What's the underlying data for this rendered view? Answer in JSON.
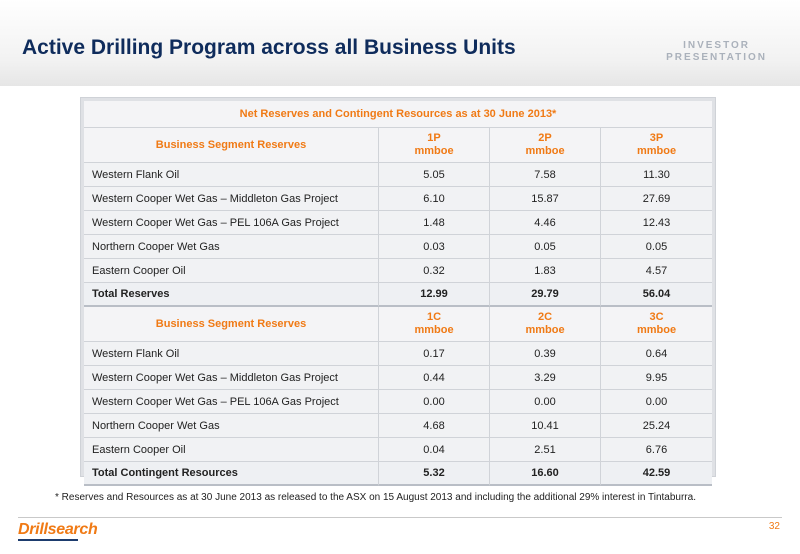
{
  "header": {
    "title": "Active Drilling Program across all Business Units",
    "investor_line1": "INVESTOR",
    "investor_line2": "PRESENTATION"
  },
  "table": {
    "caption": "Net Reserves and Contingent Resources as at 30 June 2013*",
    "reserves": {
      "header": [
        "Business Segment Reserves",
        "1P\nmmboe",
        "2P\nmmboe",
        "3P\nmmboe"
      ],
      "rows": [
        [
          "Western Flank Oil",
          "5.05",
          "7.58",
          "11.30"
        ],
        [
          "Western Cooper Wet Gas – Middleton Gas Project",
          "6.10",
          "15.87",
          "27.69"
        ],
        [
          "Western Cooper Wet Gas – PEL 106A Gas Project",
          "1.48",
          "4.46",
          "12.43"
        ],
        [
          "Northern Cooper Wet Gas",
          "0.03",
          "0.05",
          "0.05"
        ],
        [
          "Eastern Cooper Oil",
          "0.32",
          "1.83",
          "4.57"
        ]
      ],
      "total": [
        "Total Reserves",
        "12.99",
        "29.79",
        "56.04"
      ]
    },
    "contingent": {
      "header": [
        "Business Segment Reserves",
        "1C\nmmboe",
        "2C\nmmboe",
        "3C\nmmboe"
      ],
      "rows": [
        [
          "Western Flank Oil",
          "0.17",
          "0.39",
          "0.64"
        ],
        [
          "Western Cooper Wet Gas – Middleton Gas Project",
          "0.44",
          "3.29",
          "9.95"
        ],
        [
          "Western Cooper Wet Gas – PEL 106A Gas Project",
          "0.00",
          "0.00",
          "0.00"
        ],
        [
          "Northern Cooper Wet Gas",
          "4.68",
          "10.41",
          "25.24"
        ],
        [
          "Eastern Cooper Oil",
          "0.04",
          "2.51",
          "6.76"
        ]
      ],
      "total": [
        "Total Contingent Resources",
        "5.32",
        "16.60",
        "42.59"
      ]
    }
  },
  "footer": {
    "footnote": "* Reserves and Resources as at 30 June 2013 as released to the ASX on 15 August 2013 and including the additional 29% interest in Tintaburra.",
    "logo": "Drillsearch",
    "page_number": "32"
  },
  "colors": {
    "title": "#0f2c5c",
    "accent": "#f07a15",
    "investor": "#aab1bb"
  }
}
